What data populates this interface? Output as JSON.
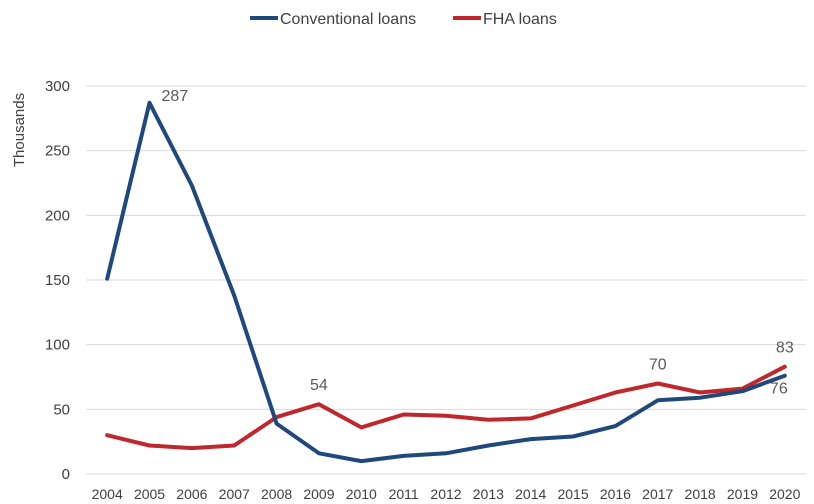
{
  "chart_data": {
    "type": "line",
    "categories": [
      "2004",
      "2005",
      "2006",
      "2007",
      "2008",
      "2009",
      "2010",
      "2011",
      "2012",
      "2013",
      "2014",
      "2015",
      "2016",
      "2017",
      "2018",
      "2019",
      "2020"
    ],
    "series": [
      {
        "name": "Conventional loans",
        "color": "#1f497d",
        "values": [
          151,
          287,
          223,
          138,
          39,
          16,
          10,
          14,
          16,
          22,
          27,
          29,
          37,
          57,
          59,
          64,
          76
        ]
      },
      {
        "name": "FHA loans",
        "color": "#c0272d",
        "values": [
          30,
          22,
          20,
          22,
          44,
          54,
          36,
          46,
          45,
          42,
          43,
          53,
          63,
          70,
          63,
          66,
          83
        ]
      }
    ],
    "data_labels": [
      {
        "series": 0,
        "index": 1,
        "text": "287"
      },
      {
        "series": 1,
        "index": 5,
        "text": "54"
      },
      {
        "series": 1,
        "index": 13,
        "text": "70"
      },
      {
        "series": 1,
        "index": 16,
        "text": "83"
      },
      {
        "series": 0,
        "index": 16,
        "text": "76"
      }
    ],
    "ylabel": "Thousands",
    "xlabel": "",
    "ylim": [
      0,
      300
    ],
    "yticks": [
      0,
      50,
      100,
      150,
      200,
      250,
      300
    ],
    "grid": true,
    "legend_position": "top-center"
  }
}
